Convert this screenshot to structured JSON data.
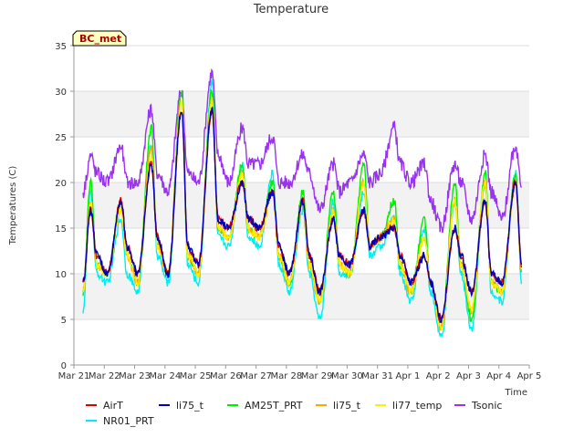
{
  "chart_data": {
    "type": "line",
    "title": "Temperature",
    "xlabel": "Time",
    "ylabel": "Temperatures (C)",
    "badge": "BC_met",
    "ylim": [
      0,
      35
    ],
    "yticks": [
      0,
      5,
      10,
      15,
      20,
      25,
      30,
      35
    ],
    "xlim": [
      "2024-03-21",
      "2024-04-05"
    ],
    "xticks": [
      "Mar 21",
      "Mar 22",
      "Mar 23",
      "Mar 24",
      "Mar 25",
      "Mar 26",
      "Mar 27",
      "Mar 28",
      "Mar 29",
      "Mar 30",
      "Mar 31",
      "Apr 1",
      "Apr 2",
      "Apr 3",
      "Apr 4",
      "Apr 5"
    ],
    "grid": true,
    "legend_position": "bottom",
    "series": [
      {
        "name": "AirT",
        "color": "#dd0000"
      },
      {
        "name": "NR01_PRT",
        "color": "#00eeee"
      },
      {
        "name": "li75_t",
        "color": "#0000bb"
      },
      {
        "name": "AM25T_PRT",
        "color": "#00ee00"
      },
      {
        "name": "li75_t",
        "color": "#ffa500"
      },
      {
        "name": "li77_temp",
        "color": "#ffee00"
      },
      {
        "name": "Tsonic",
        "color": "#9933ee"
      }
    ],
    "daily_approx": {
      "day_offsets": [
        0.3,
        0.55,
        0.75,
        1.1,
        1.55,
        1.75,
        2.1,
        2.55,
        2.75,
        3.1,
        3.55,
        3.75,
        4.1,
        4.55,
        4.75,
        5.1,
        5.55,
        5.75,
        6.1,
        6.55,
        6.75,
        7.1,
        7.55,
        7.75,
        8.1,
        8.55,
        8.75,
        9.1,
        9.55,
        9.75,
        10.1,
        10.55,
        10.75,
        11.1,
        11.55,
        11.75,
        12.1,
        12.55,
        12.75,
        13.1,
        13.55,
        13.75,
        14.1,
        14.55,
        14.75
      ],
      "AirT": [
        9,
        17,
        12,
        10,
        18,
        13,
        10,
        22,
        14,
        10,
        28,
        13,
        11,
        28,
        16,
        15,
        20,
        16,
        15,
        19,
        13,
        10,
        18,
        12,
        8,
        16,
        12,
        11,
        17,
        13,
        14,
        15,
        12,
        9,
        12,
        9,
        5,
        15,
        12,
        8,
        18,
        10,
        9,
        20,
        11
      ],
      "NR01_PRT": [
        6,
        19,
        10,
        9,
        16,
        10,
        8,
        24,
        12,
        9,
        29,
        11,
        9,
        31,
        14,
        13,
        22,
        14,
        13,
        21,
        11,
        8,
        17,
        10,
        5,
        18,
        10,
        10,
        19,
        12,
        13,
        16,
        10,
        7,
        15,
        8,
        3,
        18,
        10,
        4,
        20,
        8,
        7,
        21,
        9
      ],
      "AM25T_PRT": [
        8,
        20,
        11,
        10,
        18,
        12,
        9,
        26,
        13,
        10,
        30,
        12,
        10,
        30,
        15,
        14,
        22,
        15,
        14,
        20,
        12,
        9,
        19,
        11,
        7,
        19,
        11,
        10,
        22,
        13,
        14,
        18,
        11,
        8,
        16,
        9,
        4,
        20,
        11,
        5,
        21,
        9,
        8,
        21,
        10
      ],
      "li75_t": [
        8,
        18,
        11,
        10,
        17,
        12,
        9,
        24,
        13,
        10,
        29,
        12,
        10,
        29,
        15,
        14,
        21,
        15,
        14,
        19,
        12,
        9,
        18,
        11,
        7,
        17,
        11,
        10,
        20,
        13,
        14,
        16,
        11,
        8,
        14,
        9,
        4,
        18,
        11,
        6,
        20,
        9,
        8,
        20,
        10
      ],
      "li77_temp": [
        8,
        18,
        11,
        10,
        17,
        12,
        9,
        23,
        13,
        10,
        29,
        12,
        10,
        29,
        15,
        14,
        21,
        15,
        14,
        19,
        12,
        9,
        18,
        11,
        7,
        17,
        11,
        10,
        20,
        13,
        14,
        16,
        11,
        8,
        14,
        9,
        4,
        18,
        11,
        6,
        20,
        9,
        8,
        20,
        10
      ],
      "Tsonic": [
        19,
        23,
        21,
        20,
        24,
        20,
        20,
        28,
        21,
        19,
        30,
        21,
        20,
        32,
        23,
        20,
        26,
        22,
        22,
        25,
        20,
        20,
        23,
        21,
        17,
        22,
        19,
        20,
        23,
        20,
        21,
        26,
        22,
        20,
        22,
        18,
        15,
        22,
        20,
        16,
        23,
        19,
        16,
        24,
        20
      ]
    }
  }
}
